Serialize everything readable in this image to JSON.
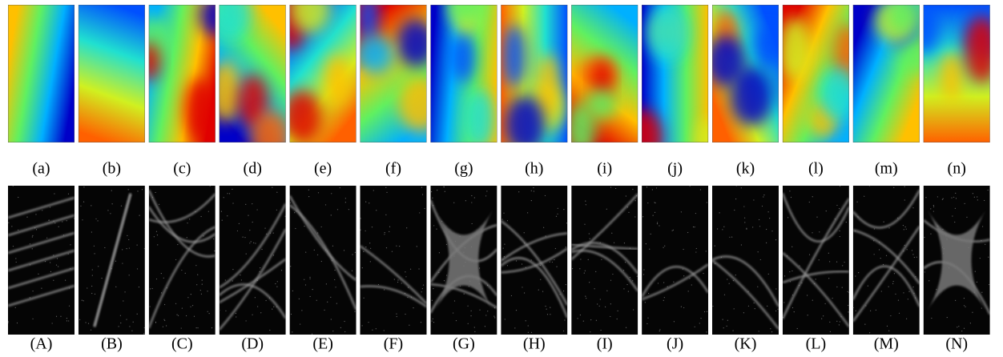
{
  "top_labels": [
    "(a)",
    "(b)",
    "(c)",
    "(d)",
    "(e)",
    "(f)",
    "(g)",
    "(h)",
    "(i)",
    "(j)",
    "(k)",
    "(l)",
    "(m)",
    "(n)"
  ],
  "bottom_labels": [
    "(A)",
    "(B)",
    "(C)",
    "(D)",
    "(E)",
    "(F)",
    "(G)",
    "(H)",
    "(I)",
    "(J)",
    "(K)",
    "(L)",
    "(M)",
    "(N)"
  ]
}
